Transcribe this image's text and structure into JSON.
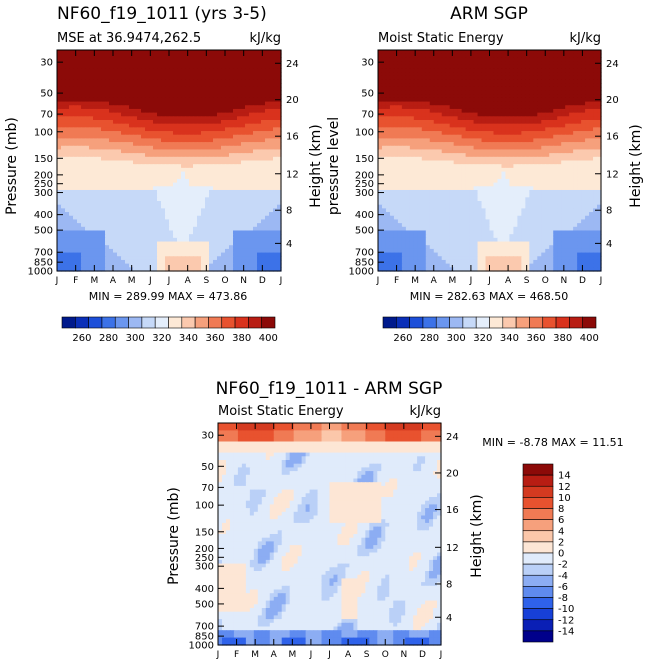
{
  "palette": {
    "mse": [
      "#001a8c",
      "#0a2fb8",
      "#1c4fd9",
      "#3c72e8",
      "#6b96ef",
      "#9cb8f3",
      "#c6d9f8",
      "#e4eefb",
      "#fde9d6",
      "#fbc9ae",
      "#f6a07c",
      "#f07a54",
      "#e8522f",
      "#d9321d",
      "#b81d13",
      "#8c0a08"
    ],
    "diff": [
      "#00008b",
      "#0a1fb5",
      "#1740d8",
      "#2f62ea",
      "#5f8bef",
      "#8cadf3",
      "#bad0f7",
      "#e0ebfb",
      "#fde6d5",
      "#fbc7aa",
      "#f6a07c",
      "#f07a54",
      "#e8522f",
      "#d43a20",
      "#b81d13",
      "#8c0a08"
    ]
  },
  "chart_data": [
    {
      "type": "heatmap",
      "id": "model",
      "title": "NF60_f19_1011 (yrs 3-5)",
      "subtitle_left": "MSE at 36.9474,262.5",
      "subtitle_right": "kJ/kg",
      "ylabel": "Pressure (mb)",
      "ylabel_right": "Height (km)",
      "months": [
        "J",
        "F",
        "M",
        "A",
        "M",
        "J",
        "J",
        "A",
        "S",
        "O",
        "N",
        "D",
        "J"
      ],
      "pressure_ticks": [
        "30",
        "50",
        "70",
        "100",
        "150",
        "200",
        "250",
        "300",
        "400",
        "500",
        "700",
        "850",
        "1000"
      ],
      "height_ticks": [
        "24",
        "20",
        "16",
        "12",
        "8",
        "4"
      ],
      "stats": "MIN = 289.99 MAX = 473.86",
      "min": 289.99,
      "max": 473.86
    },
    {
      "type": "heatmap",
      "id": "obs",
      "title": "ARM SGP",
      "subtitle_left": "Moist Static Energy",
      "subtitle_right": "kJ/kg",
      "ylabel": "pressure level",
      "ylabel_right": "Height (km)",
      "months": [
        "J",
        "F",
        "M",
        "A",
        "M",
        "J",
        "J",
        "A",
        "S",
        "O",
        "N",
        "D",
        "J"
      ],
      "pressure_ticks": [
        "30",
        "50",
        "70",
        "100",
        "150",
        "200",
        "250",
        "300",
        "400",
        "500",
        "700",
        "850",
        "1000"
      ],
      "height_ticks": [
        "24",
        "20",
        "16",
        "12",
        "8",
        "4"
      ],
      "stats": "MIN = 282.63 MAX = 468.50",
      "min": 282.63,
      "max": 468.5
    },
    {
      "type": "heatmap",
      "id": "diff",
      "title": "NF60_f19_1011 - ARM SGP",
      "subtitle_left": "Moist Static Energy",
      "subtitle_right": "kJ/kg",
      "ylabel": "Pressure (mb)",
      "ylabel_right": "Height (km)",
      "months": [
        "J",
        "F",
        "M",
        "A",
        "M",
        "J",
        "J",
        "A",
        "S",
        "O",
        "N",
        "D",
        "J"
      ],
      "pressure_ticks": [
        "30",
        "50",
        "70",
        "100",
        "150",
        "200",
        "250",
        "300",
        "400",
        "500",
        "700",
        "850",
        "1000"
      ],
      "height_ticks": [
        "24",
        "20",
        "16",
        "12",
        "8",
        "4"
      ],
      "stats": "MIN = -8.78 MAX = 11.51",
      "min": -8.78,
      "max": 11.51
    }
  ],
  "colorbar_mse": {
    "labels": [
      "260",
      "280",
      "300",
      "320",
      "340",
      "360",
      "380",
      "400"
    ],
    "levels": [
      250,
      260,
      270,
      280,
      290,
      300,
      310,
      320,
      330,
      340,
      350,
      360,
      370,
      380,
      390,
      400
    ]
  },
  "colorbar_diff": {
    "labels": [
      "14",
      "12",
      "10",
      "8",
      "6",
      "4",
      "2",
      "0",
      "-2",
      "-4",
      "-6",
      "-8",
      "-10",
      "-12",
      "-14"
    ]
  }
}
